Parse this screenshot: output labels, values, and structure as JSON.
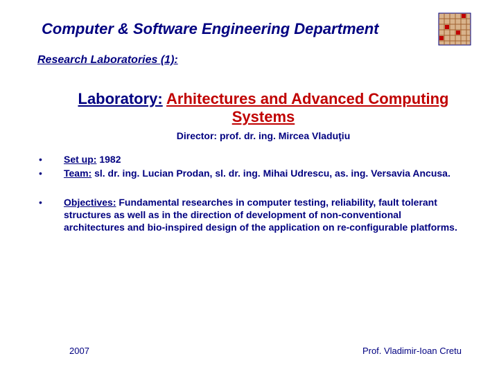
{
  "header": {
    "department_title": "Computer & Software Engineering Department",
    "subtitle": "Research Laboratories (1):"
  },
  "lab": {
    "label": "Laboratory:",
    "name": "Arhitectures and Advanced Computing Systems",
    "director_label": "Director:",
    "director_value": "prof. dr. ing.  Mircea Vladuţiu"
  },
  "bullets": [
    {
      "label": "Set up:",
      "value": "1982"
    },
    {
      "label": "Team:",
      "value": "sl. dr. ing. Lucian Prodan, sl. dr. ing. Mihai Udrescu, as. ing. Versavia Ancusa."
    },
    {
      "label": "Objectives:",
      "value": "Fundamental researches in computer testing, reliability, fault tolerant structures as well as in the direction of development of non-conventional architectures and bio-inspired design of the application on re-configurable platforms.",
      "gap": true
    }
  ],
  "footer": {
    "year": "2007",
    "author": "Prof. Vladimir-Ioan Cretu"
  },
  "logo": {
    "bg": "#d9b38c",
    "grid": "#a06030",
    "border": "#000080"
  }
}
